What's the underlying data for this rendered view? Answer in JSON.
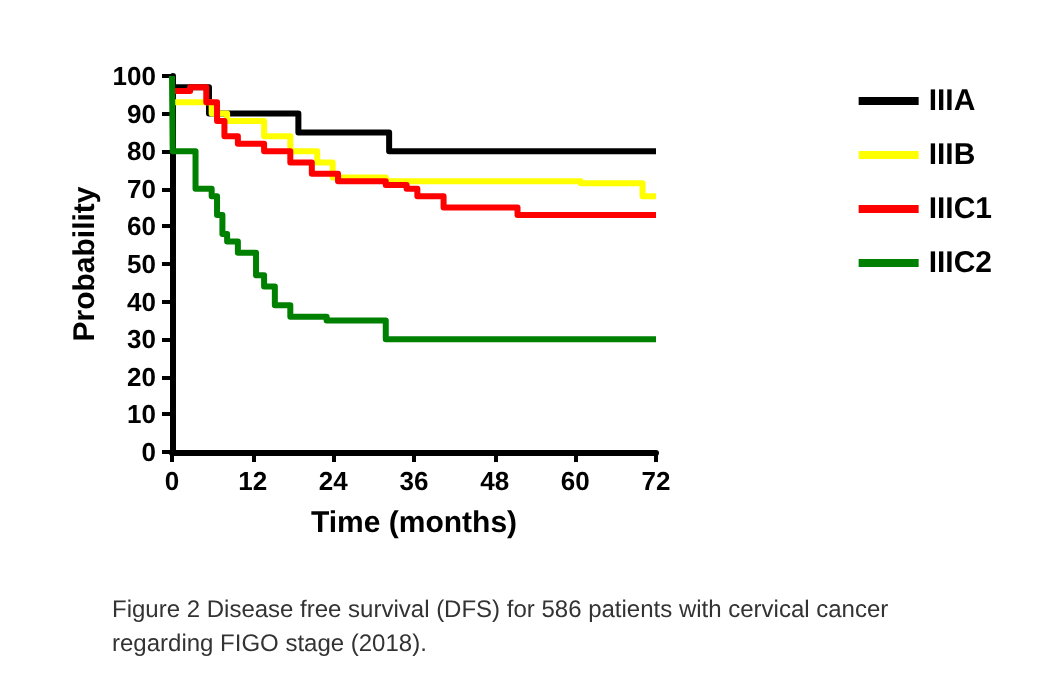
{
  "chart_data": {
    "type": "step",
    "xlabel": "Time (months)",
    "ylabel": "Probability",
    "xlim": [
      0,
      72
    ],
    "xticks": [
      0,
      12,
      24,
      36,
      48,
      60,
      72
    ],
    "ylim": [
      0,
      100
    ],
    "yticks": [
      0,
      10,
      20,
      30,
      40,
      50,
      60,
      70,
      80,
      90,
      100
    ],
    "grid": false,
    "legend": "right",
    "marker": "none",
    "line_style": "solid",
    "series": [
      {
        "name": "IIIA",
        "color": "#000000",
        "x": [
          0,
          5.5,
          18.8,
          32.3,
          72
        ],
        "values": [
          97,
          90,
          85,
          80,
          80
        ]
      },
      {
        "name": "IIIB",
        "color": "#ffff00",
        "x": [
          0,
          5.9,
          8.2,
          13.7,
          17.6,
          21.6,
          23.9,
          31.8,
          60.8,
          70,
          72
        ],
        "values": [
          93,
          90,
          88,
          84,
          80,
          77,
          73,
          72,
          71.5,
          68,
          68
        ]
      },
      {
        "name": "IIIC1",
        "color": "#ff0000",
        "x": [
          0,
          2.7,
          5.1,
          6.7,
          7.8,
          9.8,
          13.7,
          17.6,
          20.8,
          24.7,
          31.8,
          34.9,
          36.5,
          40.4,
          51.4,
          72
        ],
        "values": [
          96,
          97,
          93,
          88,
          84,
          82,
          80,
          77,
          74,
          72,
          71,
          70,
          68,
          65,
          63,
          63
        ]
      },
      {
        "name": "IIIC2",
        "color": "#008000",
        "x": [
          0,
          0.1,
          2.7,
          3.5,
          5.9,
          6.7,
          7.5,
          8.2,
          9.8,
          12.5,
          13.7,
          15.3,
          17.6,
          23,
          31.8,
          72
        ],
        "values": [
          100,
          80,
          80,
          70,
          68,
          63,
          58,
          56,
          53,
          47,
          44,
          39,
          36,
          35,
          30,
          30
        ]
      }
    ],
    "annotations": [
      "Figure 2 Disease free survival (DFS) for 586 patients with cervical cancer regarding FIGO stage (2018)."
    ]
  }
}
